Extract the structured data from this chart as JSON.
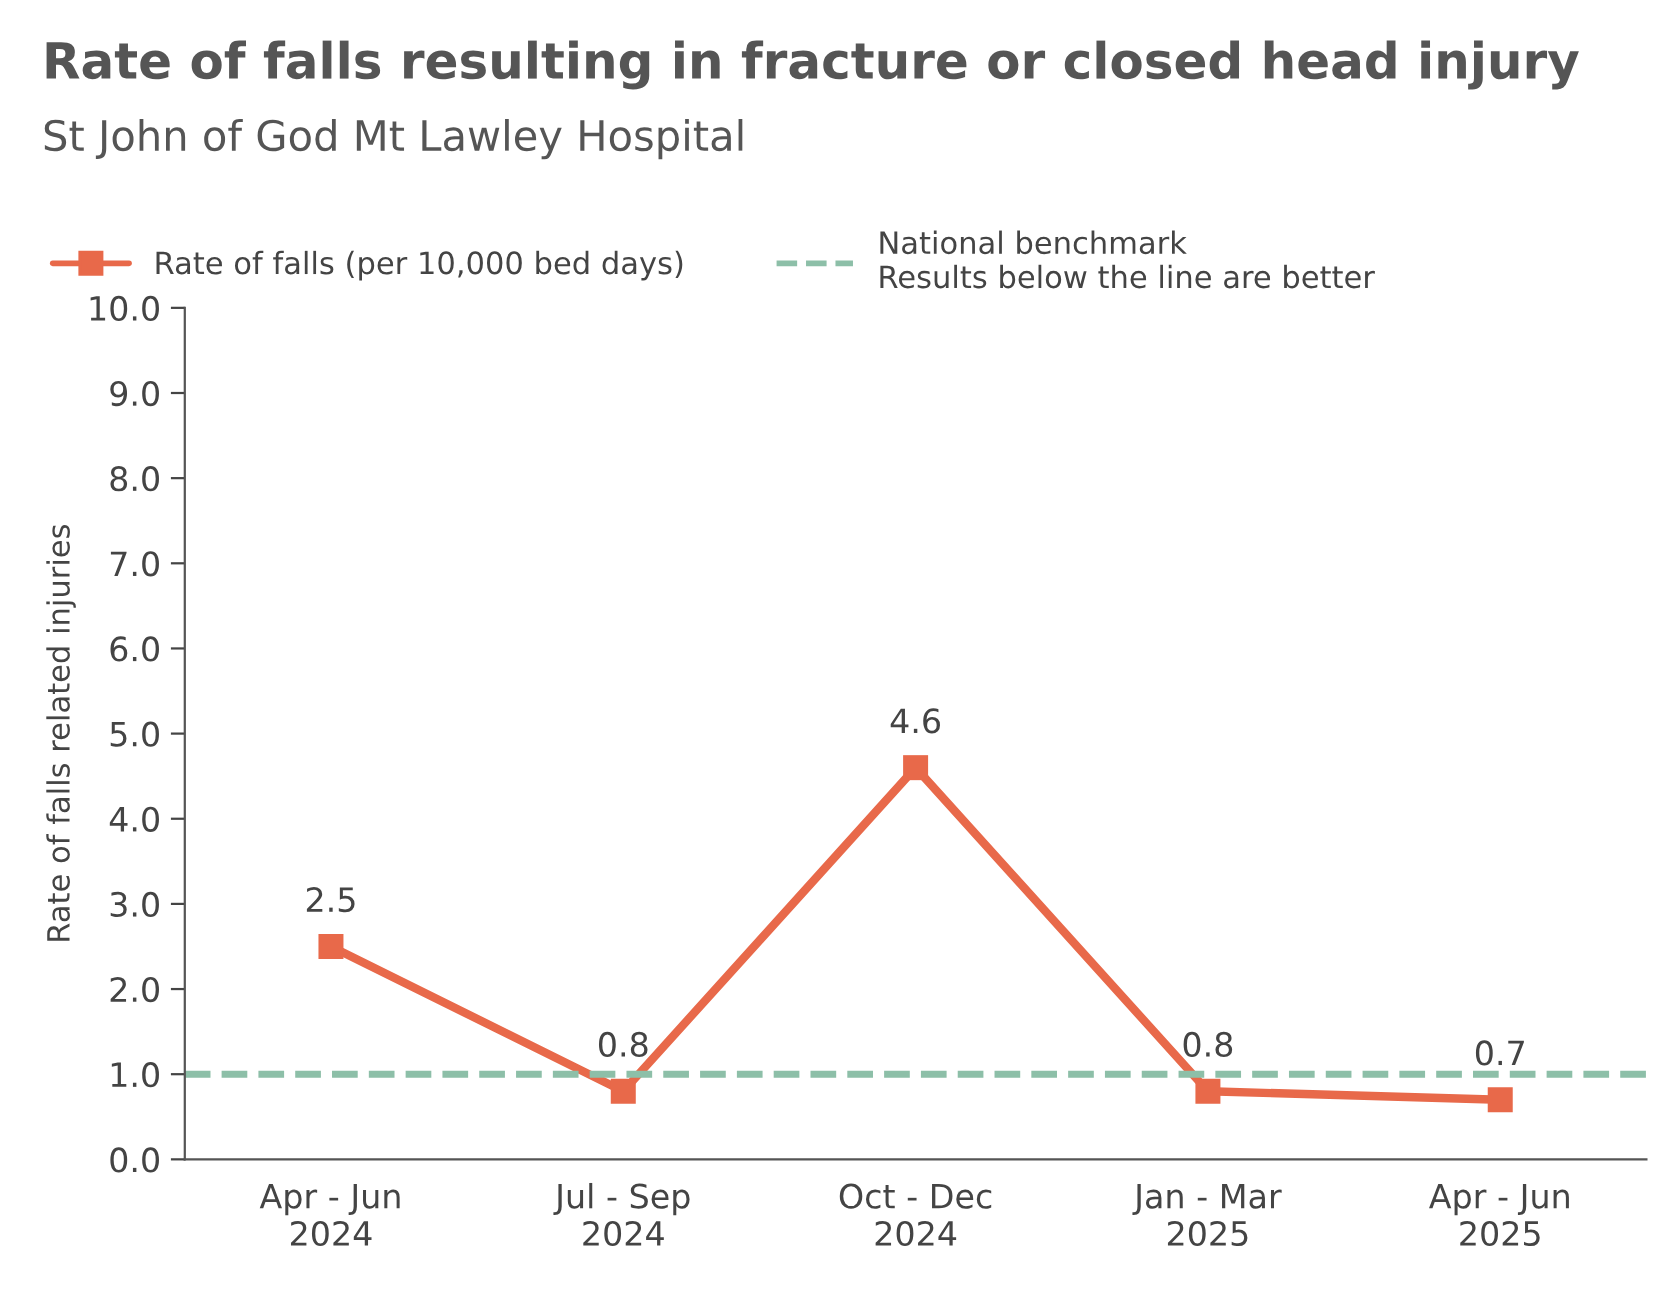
{
  "chart_data": {
    "type": "line",
    "title": "Rate of falls resulting in fracture or closed head injury",
    "subtitle": "St John of God Mt Lawley Hospital",
    "ylabel": "Rate of falls related injuries",
    "categories": [
      "Apr - Jun\n2024",
      "Jul - Sep\n2024",
      "Oct - Dec\n2024",
      "Jan - Mar\n2025",
      "Apr - Jun\n2025"
    ],
    "series": [
      {
        "name": "Rate of falls (per 10,000 bed days)",
        "color": "#e8694a",
        "values": [
          2.5,
          0.8,
          4.6,
          0.8,
          0.7
        ]
      }
    ],
    "marker": "square",
    "line_style": "solid",
    "data_labels": true,
    "ylim": [
      0,
      10
    ],
    "yticks": [
      {
        "value": 0,
        "label": "0.0"
      },
      {
        "value": 1,
        "label": "1.0"
      },
      {
        "value": 2,
        "label": "2.0"
      },
      {
        "value": 3,
        "label": "3.0"
      },
      {
        "value": 4,
        "label": "4.0"
      },
      {
        "value": 5,
        "label": "5.0"
      },
      {
        "value": 6,
        "label": "6.0"
      },
      {
        "value": 7,
        "label": "7.0"
      },
      {
        "value": 8,
        "label": "8.0"
      },
      {
        "value": 9,
        "label": "9.0"
      },
      {
        "value": 10,
        "label": "10.0"
      }
    ],
    "ref_lines": [
      {
        "axis": "y",
        "value": 1.0,
        "label": "National benchmark\nResults below the line are better",
        "color": "#8dbfa8",
        "line_style": "dashed"
      }
    ],
    "grid": false,
    "legend": "top left"
  }
}
